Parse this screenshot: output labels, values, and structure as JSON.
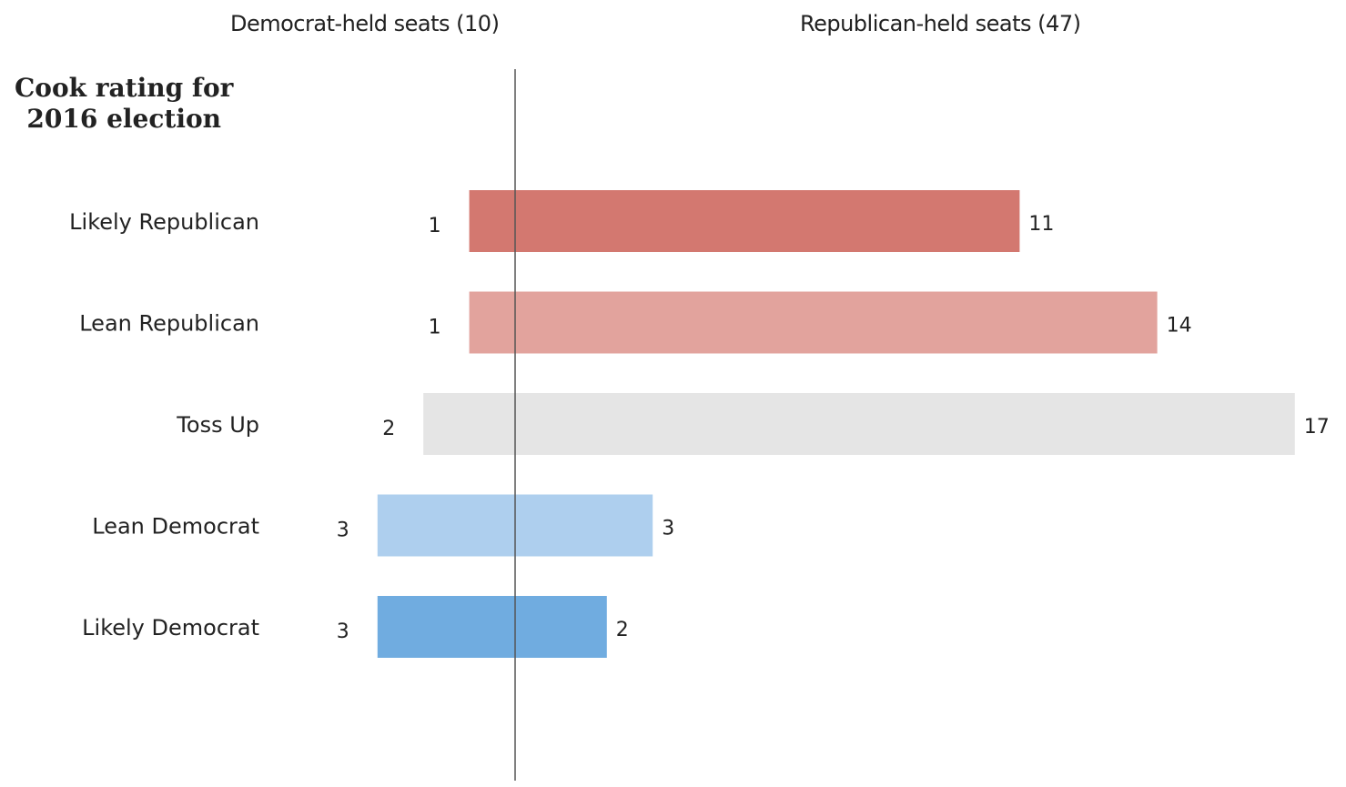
{
  "headers": {
    "democrat": "Democrat-held seats (10)",
    "republican": "Republican-held seats (47)"
  },
  "title_lines": [
    "Cook rating for",
    "2016 election"
  ],
  "chart_data": {
    "type": "bar",
    "orientation": "diverging-horizontal",
    "categories": [
      "Likely Republican",
      "Lean Republican",
      "Toss Up",
      "Lean Democrat",
      "Likely Democrat"
    ],
    "series": [
      {
        "name": "Democrat-held seats (10)",
        "values": [
          1,
          1,
          2,
          3,
          3
        ]
      },
      {
        "name": "Republican-held seats (47)",
        "values": [
          11,
          14,
          17,
          3,
          2
        ]
      }
    ],
    "colors": [
      "#d37870",
      "#e2a39d",
      "#e5e5e5",
      "#aecfee",
      "#70ace0"
    ],
    "center_line_color": "#555555"
  }
}
